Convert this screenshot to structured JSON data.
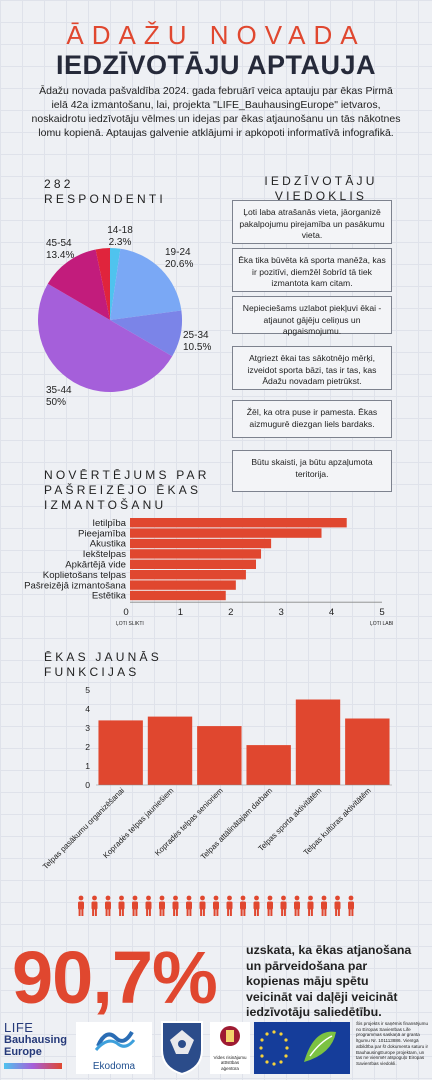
{
  "header": {
    "line1": "ĀDAŽU NOVADA",
    "line2": "IEDZĪVOTĀJU APTAUJA",
    "intro": "Ādažu novada pašvaldība 2024. gada februārī veica aptauju par ēkas Pirmā ielā 42a izmantošanu, lai, projekta \"LIFE_BauhausingEurope\" ietvaros, noskaidrotu iedzīvotāju vēlmes un idejas par ēkas atjaunošanu un tās nākotnes lomu kopienā.  Aptaujas galvenie atklājumi ir apkopoti informatīvā infografikā."
  },
  "respondents": {
    "count": "282",
    "label": "RESPONDENTI"
  },
  "opinions": {
    "heading_1": "IEDZĪVOTĀJU",
    "heading_2": "VIEDOKLIS",
    "quotes": [
      "Ļoti laba atrašanās vieta, jāorganizē pakalpojumu pirejamība un pasākumu vieta.",
      "Ēka tika būvēta kā sporta manēža, kas ir pozitīvi, diemžēl šobrīd tā tiek izmantota kam citam.",
      "Nepieciešams uzlabot piekļuvi ēkai - atjaunot gājēju celiņus un apgaismojumu.",
      "Atgriezt ēkai tas sākotnējo mērķi, izveidot sporta bāzi, tas ir tas, kas Ādažu novadam pietrūkst.",
      "Žēl, ka otra puse ir pamesta. Ēkas aizmugurē diezgan liels bardaks.",
      "Būtu skaisti, ja būtu apzaļumota teritorija."
    ]
  },
  "rating": {
    "heading_1": "NOVĒRTĒJUMS PAR",
    "heading_2": "PAŠREIZĒJO ĒKAS",
    "heading_3": "IZMANTOŠANU",
    "low_label": "ĻOTI SLIKTI",
    "high_label": "ĻOTI LABI"
  },
  "functions": {
    "heading_1": "ĒKAS JAUNĀS",
    "heading_2": "FUNKCIJAS"
  },
  "summary": {
    "percent": "90,7%",
    "text": "uzskata, ka ēkas atjanošana un pārveidošana par kopienas māju spētu veicināt vai daļēji veicināt iedzīvotāju saliedētību."
  },
  "footer": {
    "life_logo_1": "LIFE",
    "life_logo_2": "Bauhausing",
    "life_logo_3": "Europe",
    "ekodoma": "Ekodoma",
    "agency": "Vides risinājumu attīstības aģentūra",
    "legal": "Šis projekts ir saņēmis finansējumu no Eiropas Savienības Life programmas saskaņā ar granta līgumu Nr. 101113886. Vienīgā atbildība par šī dokumenta saturu ir BauhausingEurope projektam, un tas ne vienmēr atspoguļo Eiropas Savienības viedokli."
  },
  "colors": {
    "accent": "#e0472f",
    "dark": "#262a3a",
    "bar": "#e0472f"
  },
  "chart_data": [
    {
      "type": "pie",
      "labels": [
        "14-18",
        "19-24",
        "25-34",
        "35-44",
        "45-54"
      ],
      "values": [
        2.3,
        20.6,
        10.5,
        50,
        13.4
      ],
      "value_labels": [
        "2.3%",
        "20.6%",
        "10.5%",
        "50%",
        "13.4%"
      ],
      "colors": [
        "#4fc3ee",
        "#7aa8f5",
        "#7b84e8",
        "#a55fda",
        "#c21c7c"
      ],
      "extra_slice": {
        "value": 3.2,
        "color": "#e0243c"
      }
    },
    {
      "type": "bar",
      "orientation": "horizontal",
      "categories": [
        "Ietilpība",
        "Pieejamība",
        "Akustika",
        "Iekštelpas",
        "Apkārtējā vide",
        "Koplietošans telpas",
        "Pašreizējā izmantošana",
        "Estētika"
      ],
      "values": [
        4.3,
        3.8,
        2.8,
        2.6,
        2.5,
        2.3,
        2.1,
        1.9
      ],
      "xlim": [
        0,
        5
      ],
      "xticks": [
        "0",
        "1",
        "2",
        "3",
        "4",
        "5"
      ]
    },
    {
      "type": "bar",
      "categories": [
        "Telpas pasākumu organizēšanai",
        "Kopradės telpas jauniešiem",
        "Kopradės telpas senioriem",
        "Telpas attālinātajam darbam",
        "Telpas sporta aktivitātēm",
        "Telpas kultūras aktivitātēm"
      ],
      "values": [
        3.4,
        3.6,
        3.1,
        2.1,
        4.5,
        3.5
      ],
      "ylim": [
        0,
        5
      ],
      "yticks": [
        "0",
        "1",
        "2",
        "3",
        "4",
        "5"
      ]
    }
  ]
}
